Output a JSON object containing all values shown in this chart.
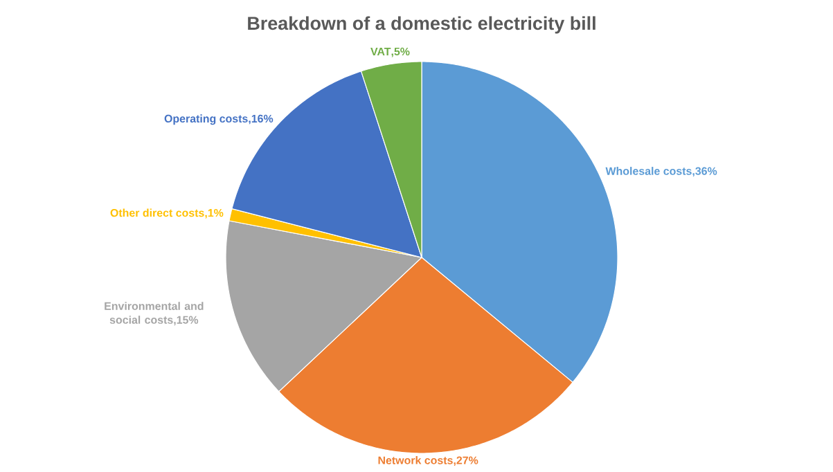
{
  "chart_data": {
    "type": "pie",
    "title": "Breakdown of a domestic electricity bill",
    "categories": [
      "Wholesale costs",
      "Network costs",
      "Environmental and social costs",
      "Other direct costs",
      "Operating costs",
      "VAT"
    ],
    "values": [
      36,
      27,
      15,
      1,
      16,
      5
    ],
    "value_labels": [
      ",36%",
      ",27%",
      ",15%",
      ",1%",
      ",16%",
      ",5%"
    ],
    "colors": [
      "#5b9bd5",
      "#ed7d31",
      "#a5a5a5",
      "#ffc000",
      "#4472c4",
      "#70ad47"
    ]
  }
}
